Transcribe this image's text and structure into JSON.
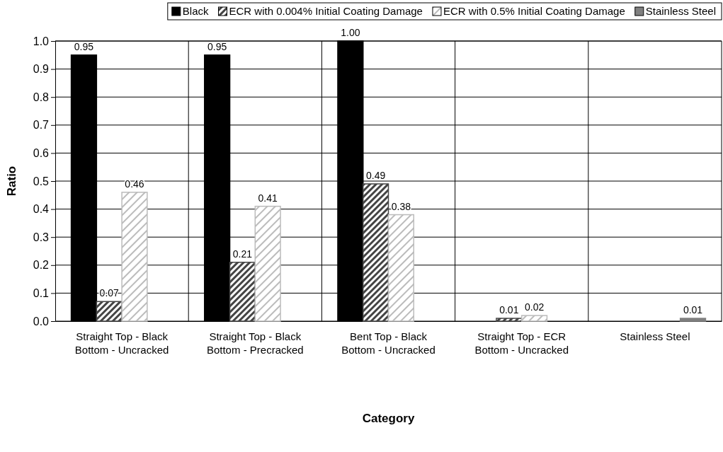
{
  "chart_data": {
    "type": "bar",
    "xlabel": "Category",
    "ylabel": "Ratio",
    "categories": [
      "Straight Top - Black\nBottom - Uncracked",
      "Straight Top - Black\nBottom - Precracked",
      "Bent Top - Black\nBottom - Uncracked",
      "Straight Top - ECR\nBottom - Uncracked",
      "Stainless Steel"
    ],
    "series": [
      {
        "name": "Black",
        "color": "#000000",
        "values": [
          0.95,
          0.95,
          1.0,
          null,
          null
        ],
        "value_labels": [
          "0.95",
          "0.95",
          "1.00",
          null,
          null
        ]
      },
      {
        "name": "ECR with 0.004% Initial Coating Damage",
        "color": "#444444",
        "values": [
          0.07,
          0.21,
          0.49,
          0.01,
          null
        ],
        "value_labels": [
          "0.07",
          "0.21",
          "0.49",
          "0.01",
          null
        ]
      },
      {
        "name": "ECR with 0.5% Initial Coating Damage",
        "color": "#bbbbbb",
        "values": [
          0.46,
          0.41,
          0.38,
          0.02,
          null
        ],
        "value_labels": [
          "0.46",
          "0.41",
          "0.38",
          "0.02",
          null
        ]
      },
      {
        "name": "Stainless Steel",
        "color": "#808080",
        "values": [
          null,
          null,
          null,
          null,
          0.01
        ],
        "value_labels": [
          null,
          null,
          null,
          null,
          "0.01"
        ]
      }
    ],
    "ylim": [
      0,
      1.0
    ],
    "yticks": [
      {
        "value": 0,
        "label": "0.0"
      },
      0.1,
      0.2,
      0.3,
      0.4,
      0.5,
      0.6,
      0.7,
      0.8,
      0.9,
      {
        "value": 1.0,
        "label": "1.0"
      }
    ],
    "grid": "y",
    "legend": "top"
  }
}
